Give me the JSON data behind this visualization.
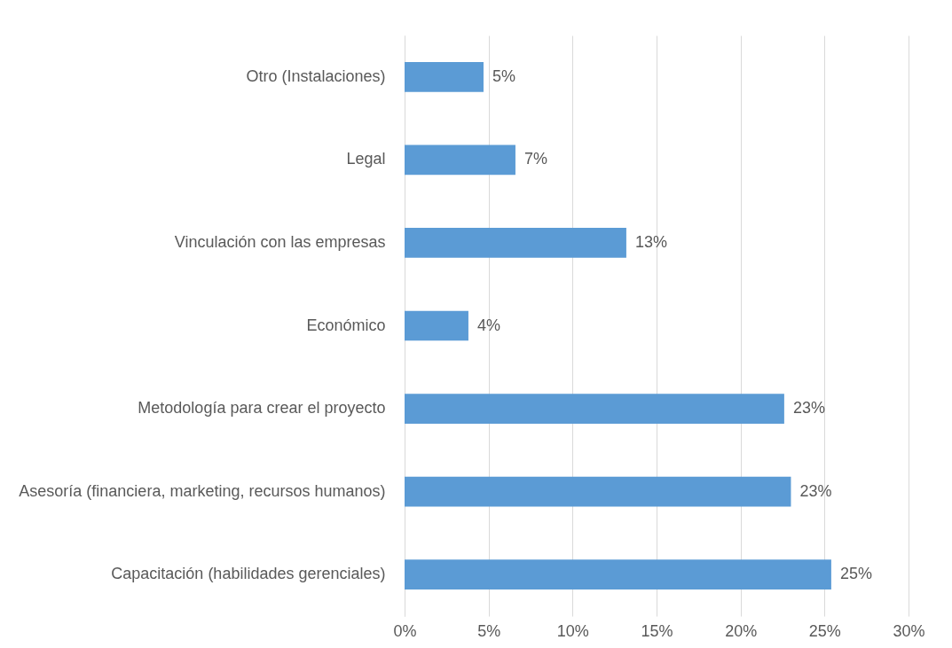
{
  "chart_data": {
    "type": "bar",
    "orientation": "horizontal",
    "categories": [
      "Otro (Instalaciones)",
      "Legal",
      "Vinculación con las empresas",
      "Económico",
      "Metodología para crear el proyecto",
      "Asesoría (financiera, marketing, recursos humanos)",
      "Capacitación (habilidades gerenciales)"
    ],
    "values": [
      4.7,
      6.6,
      13.2,
      3.8,
      22.6,
      23.0,
      25.4
    ],
    "value_labels": [
      "5%",
      "7%",
      "13%",
      "4%",
      "23%",
      "23%",
      "25%"
    ],
    "color": "#5b9bd5",
    "xlim": [
      0,
      30
    ],
    "xticks": [
      {
        "value": 0,
        "label": "0%"
      },
      {
        "value": 5,
        "label": "5%"
      },
      {
        "value": 10,
        "label": "10%"
      },
      {
        "value": 15,
        "label": "15%"
      },
      {
        "value": 20,
        "label": "20%"
      },
      {
        "value": 25,
        "label": "25%"
      },
      {
        "value": 30,
        "label": "30%"
      }
    ],
    "grid": "x"
  }
}
